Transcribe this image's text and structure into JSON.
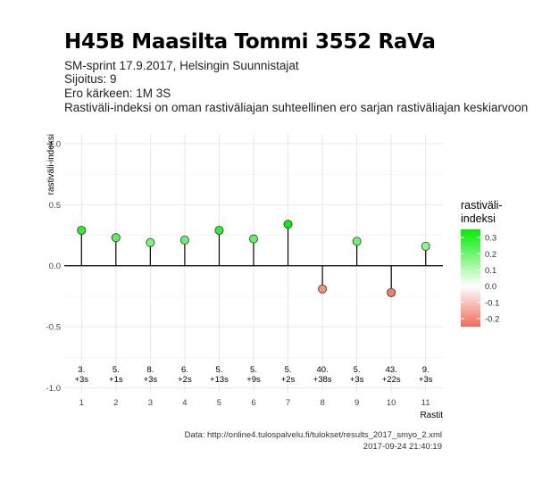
{
  "header": {
    "title": "H45B Maasilta Tommi 3552 RaVa",
    "subtitle_lines": [
      "SM-sprint 17.9.2017, Helsingin Suunnistajat",
      "Sijoitus: 9",
      "Ero kärkeen: 1M 3S",
      "Rastiväli-indeksi on oman rastiväliajan suhteellinen ero sarjan rastiväliajan keskiarvoon"
    ]
  },
  "caption": {
    "source": "Data: http://online4.tulospalvelu.fi/tulokset/results_2017_smyo_2.xml",
    "timestamp": "2017-09-24 21:40:19"
  },
  "chart_data": {
    "type": "scatter",
    "style": "lollipop",
    "xlabel": "Rastit",
    "ylabel": "rastiväli-indeksi",
    "ylim": [
      -1.0,
      1.0
    ],
    "yticks": [
      "-1.0",
      "-0.5",
      "0.0",
      "0.5",
      "1.0"
    ],
    "x": [
      1,
      2,
      3,
      4,
      5,
      6,
      7,
      8,
      9,
      10,
      11
    ],
    "xtick_labels": [
      "1",
      "2",
      "3",
      "4",
      "5",
      "6",
      "7",
      "8",
      "9",
      "10",
      "11"
    ],
    "values": [
      0.29,
      0.23,
      0.19,
      0.21,
      0.29,
      0.22,
      0.34,
      -0.19,
      0.2,
      -0.22,
      0.16
    ],
    "annotations": [
      [
        "3.",
        "+3s"
      ],
      [
        "5.",
        "+1s"
      ],
      [
        "8.",
        "+3s"
      ],
      [
        "6.",
        "+2s"
      ],
      [
        "5.",
        "+13s"
      ],
      [
        "5.",
        "+9s"
      ],
      [
        "5.",
        "+2s"
      ],
      [
        "40.",
        "+38s"
      ],
      [
        "5.",
        "+3s"
      ],
      [
        "43.",
        "+22s"
      ],
      [
        "9.",
        "+3s"
      ]
    ],
    "annotation_y": -0.91,
    "grid": true,
    "legend": {
      "title_lines": [
        "rastiväli-",
        "indeksi"
      ],
      "placement": "right",
      "range": [
        -0.25,
        0.35
      ],
      "ticks": [
        "0.3",
        "0.2",
        "0.1",
        "0.0",
        "-0.1",
        "-0.2"
      ],
      "tick_values": [
        0.3,
        0.2,
        0.1,
        0.0,
        -0.1,
        -0.2
      ]
    },
    "colors": {
      "high": "#00ee00",
      "mid": "#ffffff",
      "low": "#f26b56",
      "grid": "#e6e6e6",
      "stem": "#000000",
      "marker_outline": "#333333"
    }
  }
}
